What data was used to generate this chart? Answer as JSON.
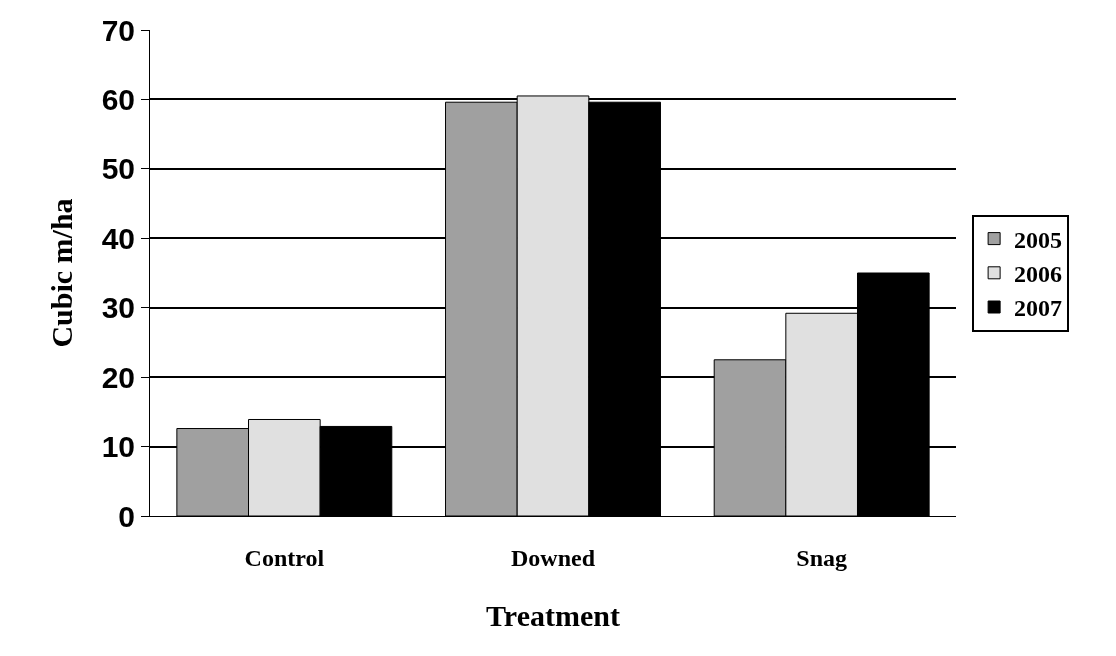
{
  "chart_data": {
    "type": "bar",
    "xlabel": "Treatment",
    "ylabel": "Cubic m/ha",
    "categories": [
      "Control",
      "Downed",
      "Snag"
    ],
    "series": [
      {
        "name": "2005",
        "color": "#a0a0a0",
        "values": [
          12.6,
          59.6,
          22.5
        ]
      },
      {
        "name": "2006",
        "color": "#e0e0e0",
        "values": [
          13.9,
          60.5,
          29.2
        ]
      },
      {
        "name": "2007",
        "color": "#000000",
        "values": [
          12.9,
          59.6,
          35
        ]
      }
    ],
    "ylim": [
      0,
      70
    ],
    "yticks": [
      0,
      10,
      20,
      30,
      40,
      50,
      60,
      70
    ],
    "grid": "y",
    "legend": "right"
  }
}
